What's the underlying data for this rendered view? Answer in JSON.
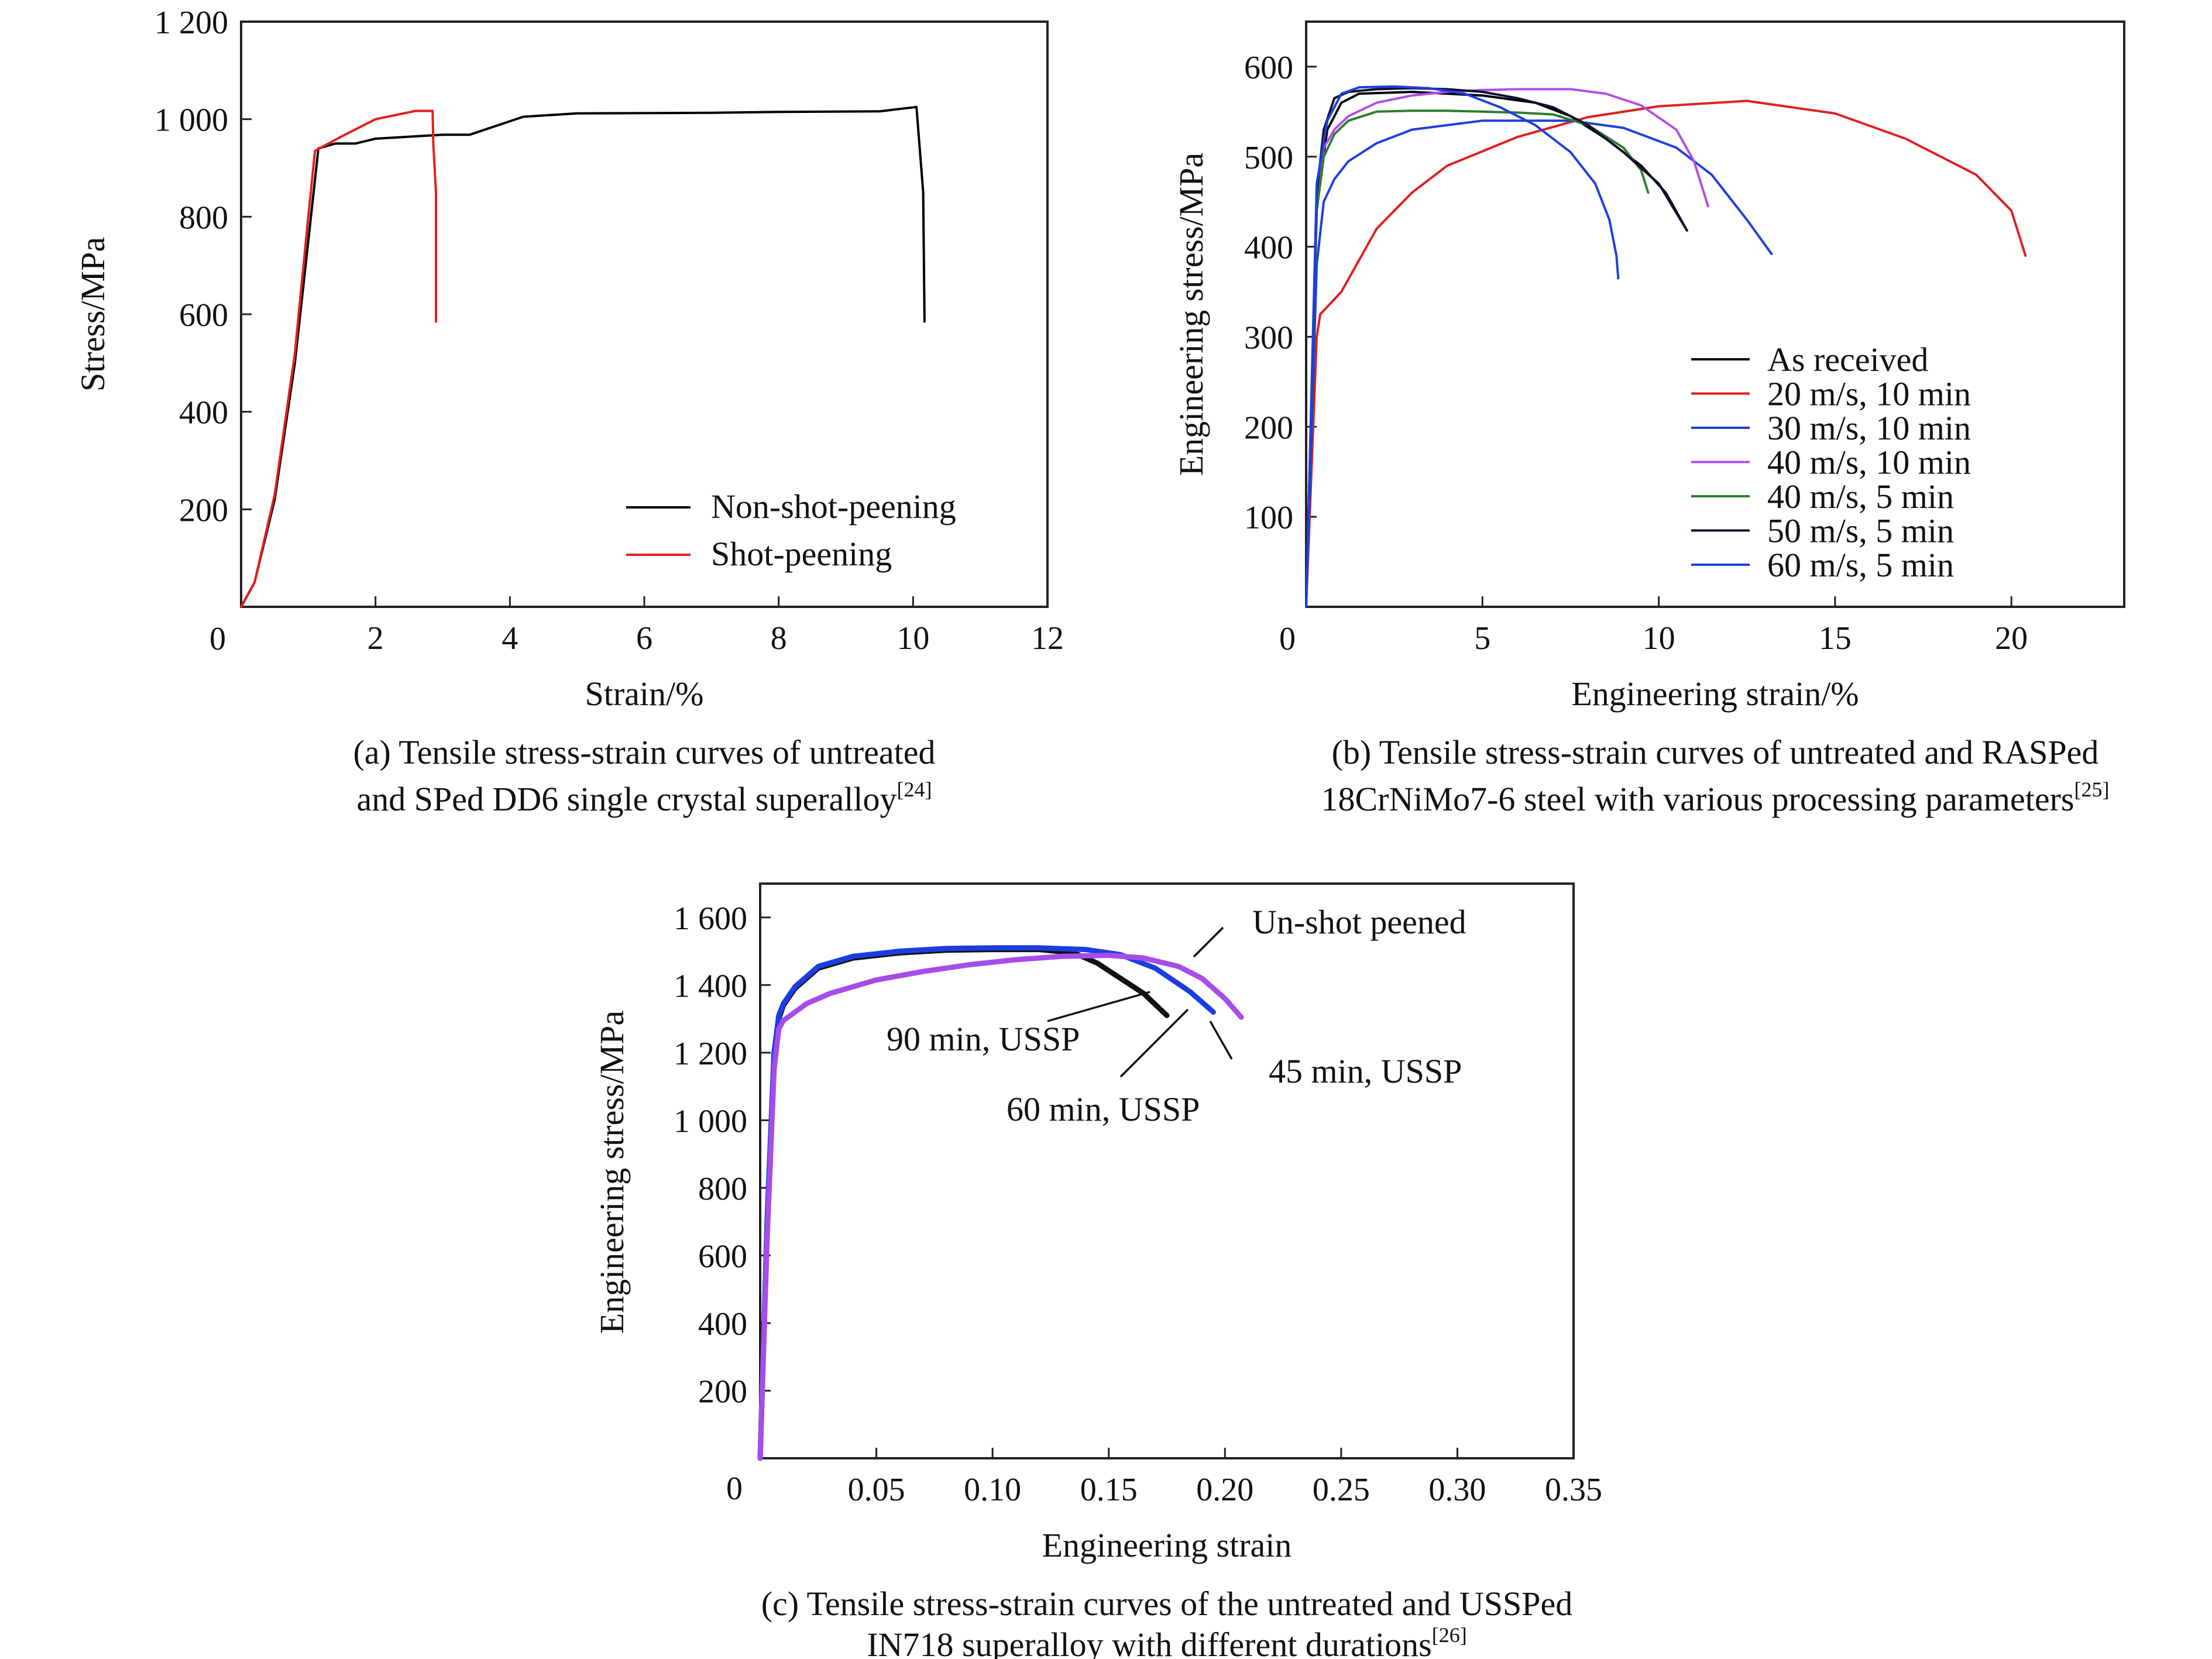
{
  "figure": {
    "captions": [
      {
        "lines": [
          "(a) Tensile stress-strain curves of untreated",
          "and SPed DD6 single crystal superalloy"
        ],
        "ref": "[24]"
      },
      {
        "lines": [
          "(b) Tensile stress-strain curves of untreated and RASPed",
          "18CrNiMo7-6 steel with various processing parameters"
        ],
        "ref": "[25]"
      },
      {
        "lines": [
          "(c) Tensile stress-strain curves of the untreated and USSPed",
          "IN718 superalloy with different durations"
        ],
        "ref": "[26]"
      }
    ]
  },
  "chart_data": [
    {
      "id": "a",
      "type": "line",
      "xlabel": "Strain/%",
      "ylabel": "Stress/MPa",
      "xlim": [
        0,
        12
      ],
      "ylim": [
        0,
        1200
      ],
      "xticks": [
        0,
        2,
        4,
        6,
        8,
        10,
        12
      ],
      "xtick_labels": [
        "0",
        "2",
        "4",
        "6",
        "8",
        "10",
        "12"
      ],
      "yticks": [
        200,
        400,
        600,
        800,
        1000,
        1200
      ],
      "ytick_labels": [
        "200",
        "400",
        "600",
        "800",
        "1 000",
        "1 200"
      ],
      "legend_position": "lower-right",
      "series": [
        {
          "name": "Non-shot-peening",
          "color": "#000000",
          "x": [
            0,
            0.2,
            0.5,
            0.8,
            1.0,
            1.15,
            1.4,
            1.7,
            2.0,
            3.0,
            3.4,
            4.2,
            5.0,
            7.0,
            8.0,
            9.5,
            10.05,
            10.15,
            10.17
          ],
          "y": [
            0,
            50,
            220,
            500,
            750,
            940,
            950,
            950,
            960,
            968,
            968,
            1005,
            1012,
            1013,
            1015,
            1016,
            1025,
            850,
            585
          ]
        },
        {
          "name": "Shot-peening",
          "color": "#e02020",
          "x": [
            0,
            0.2,
            0.5,
            0.8,
            1.0,
            1.1,
            1.5,
            2.0,
            2.6,
            2.85,
            2.86,
            2.9,
            2.9
          ],
          "y": [
            0,
            50,
            230,
            520,
            800,
            935,
            965,
            1000,
            1017,
            1017,
            950,
            850,
            585
          ]
        }
      ]
    },
    {
      "id": "b",
      "type": "line",
      "xlabel": "Engineering strain/%",
      "ylabel": "Engineering stress/MPa",
      "xlim": [
        0,
        23.2
      ],
      "ylim": [
        0,
        650
      ],
      "xticks": [
        0,
        5,
        10,
        15,
        20
      ],
      "xtick_labels": [
        "0",
        "5",
        "10",
        "15",
        "20"
      ],
      "yticks": [
        100,
        200,
        300,
        400,
        500,
        600
      ],
      "ytick_labels": [
        "100",
        "200",
        "300",
        "400",
        "500",
        "600"
      ],
      "legend_position": "lower-right",
      "series": [
        {
          "name": "As received",
          "color": "#000000",
          "x": [
            0,
            0.3,
            0.6,
            1.0,
            1.5,
            3,
            5,
            6.5,
            7.5,
            8.5,
            9.5,
            10.2,
            10.8
          ],
          "y": [
            0,
            450,
            530,
            560,
            570,
            572,
            568,
            560,
            545,
            520,
            490,
            460,
            418
          ]
        },
        {
          "name": "20 m/s, 10 min",
          "color": "#e02020",
          "x": [
            0,
            0.3,
            0.4,
            1,
            2,
            3,
            4,
            6,
            8,
            10,
            12.5,
            15,
            17,
            19,
            20,
            20.4
          ],
          "y": [
            0,
            300,
            325,
            350,
            420,
            460,
            490,
            522,
            544,
            556,
            562,
            548,
            520,
            480,
            440,
            390
          ]
        },
        {
          "name": "30 m/s, 10 min",
          "color": "#1f3fe0",
          "x": [
            0,
            0.3,
            0.5,
            0.8,
            1.2,
            2,
            3,
            4,
            5,
            6,
            7.5,
            9,
            10.5,
            11.5,
            12.5,
            13.2
          ],
          "y": [
            0,
            380,
            450,
            475,
            495,
            515,
            530,
            535,
            540,
            540,
            540,
            532,
            510,
            480,
            430,
            392
          ]
        },
        {
          "name": "40 m/s, 10 min",
          "color": "#b04ee8",
          "x": [
            0,
            0.3,
            0.5,
            0.8,
            1.2,
            2,
            3,
            4,
            5,
            6,
            7.5,
            8.5,
            9.5,
            10.5,
            11,
            11.4
          ],
          "y": [
            0,
            450,
            510,
            530,
            545,
            560,
            568,
            572,
            574,
            575,
            575,
            570,
            557,
            530,
            495,
            445
          ]
        },
        {
          "name": "40 m/s, 5 min",
          "color": "#2e7d2e",
          "x": [
            0,
            0.3,
            0.5,
            0.8,
            1.2,
            2,
            3,
            4,
            5,
            6,
            7,
            8,
            9,
            9.5,
            9.7
          ],
          "y": [
            0,
            440,
            500,
            525,
            540,
            550,
            551,
            551,
            550,
            549,
            547,
            535,
            510,
            485,
            460
          ]
        },
        {
          "name": "50 m/s, 5 min",
          "color": "#111133",
          "x": [
            0,
            0.3,
            0.5,
            0.8,
            1.2,
            2,
            3,
            4,
            5,
            6,
            7,
            8,
            9,
            10,
            10.8
          ],
          "y": [
            0,
            460,
            530,
            565,
            572,
            575,
            576,
            575,
            572,
            565,
            555,
            535,
            505,
            470,
            418
          ]
        },
        {
          "name": "60 m/s, 5 min",
          "color": "#1f3fe0",
          "x": [
            0,
            0.3,
            0.6,
            1.0,
            1.5,
            2.5,
            3.5,
            4.5,
            5.5,
            6.5,
            7.5,
            8.2,
            8.6,
            8.8,
            8.85
          ],
          "y": [
            0,
            470,
            540,
            570,
            577,
            578,
            576,
            570,
            555,
            535,
            505,
            470,
            430,
            390,
            365
          ]
        }
      ]
    },
    {
      "id": "c",
      "type": "line",
      "xlabel": "Engineering strain",
      "ylabel": "Engineering stress/MPa",
      "xlim": [
        0,
        0.35
      ],
      "ylim": [
        0,
        1700
      ],
      "xticks": [
        0,
        0.05,
        0.1,
        0.15,
        0.2,
        0.25,
        0.3,
        0.35
      ],
      "xtick_labels": [
        "0",
        "0.05",
        "0.10",
        "0.15",
        "0.20",
        "0.25",
        "0.30",
        "0.35"
      ],
      "yticks": [
        200,
        400,
        600,
        800,
        1000,
        1200,
        1400,
        1600
      ],
      "ytick_labels": [
        "200",
        "400",
        "600",
        "800",
        "1 000",
        "1 200",
        "1 400",
        "1 600"
      ],
      "series": [
        {
          "name": "90 min, USSP",
          "color": "#111111",
          "x": [
            0,
            0.003,
            0.006,
            0.008,
            0.01,
            0.015,
            0.025,
            0.04,
            0.06,
            0.08,
            0.1,
            0.12,
            0.135,
            0.145,
            0.155,
            0.165,
            0.175
          ],
          "y": [
            0,
            700,
            1200,
            1300,
            1340,
            1390,
            1450,
            1480,
            1495,
            1503,
            1505,
            1505,
            1495,
            1465,
            1420,
            1375,
            1310
          ]
        },
        {
          "name": "60 min, USSP",
          "color": "#1a3ee0",
          "x": [
            0,
            0.003,
            0.006,
            0.008,
            0.01,
            0.015,
            0.025,
            0.04,
            0.06,
            0.08,
            0.1,
            0.12,
            0.14,
            0.155,
            0.17,
            0.185,
            0.195
          ],
          "y": [
            0,
            700,
            1200,
            1310,
            1345,
            1395,
            1455,
            1485,
            1500,
            1508,
            1510,
            1510,
            1505,
            1490,
            1450,
            1380,
            1320
          ]
        },
        {
          "name": "45 min, USSP",
          "color": "#a64de8",
          "x": [
            0,
            0.003,
            0.006,
            0.008,
            0.01,
            0.015,
            0.02,
            0.03,
            0.05,
            0.07,
            0.09,
            0.11,
            0.13,
            0.15,
            0.165,
            0.18,
            0.19,
            0.2,
            0.207
          ],
          "y": [
            0,
            650,
            1150,
            1270,
            1295,
            1320,
            1345,
            1375,
            1415,
            1440,
            1460,
            1475,
            1485,
            1488,
            1480,
            1455,
            1420,
            1360,
            1305
          ]
        }
      ],
      "annotations": [
        "Un-shot peened",
        "90 min, USSP",
        "60 min, USSP",
        "45 min, USSP"
      ]
    }
  ]
}
